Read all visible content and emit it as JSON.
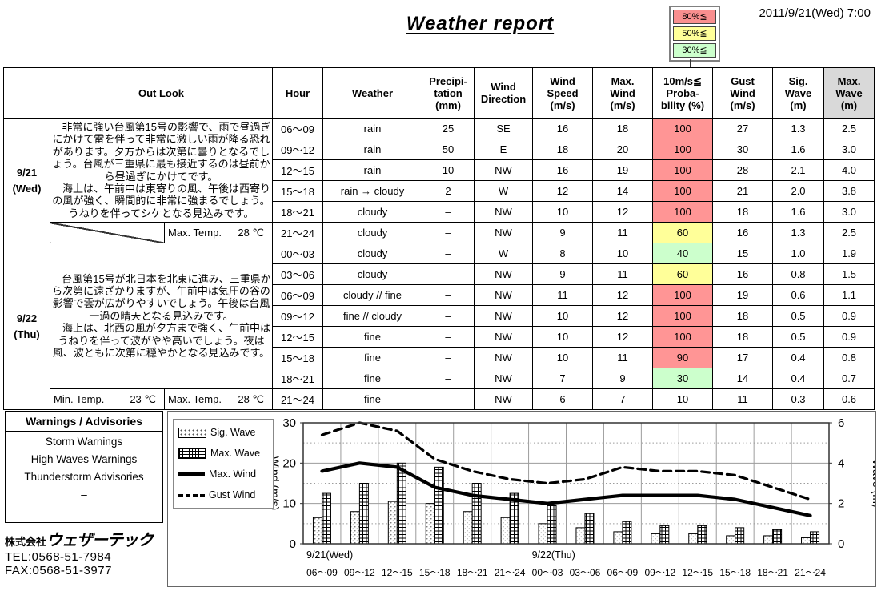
{
  "header": {
    "title": "Weather report",
    "datetime": "2011/9/21(Wed) 7:00",
    "prob_legend": [
      {
        "label": "80%≦",
        "color": "#f98f8f"
      },
      {
        "label": "50%≦",
        "color": "#ffff99"
      },
      {
        "label": "30%≦",
        "color": "#ccffcc"
      }
    ]
  },
  "colors": {
    "prob_high": "#ff9595",
    "prob_mid": "#ffff99",
    "prob_low": "#ccffcc",
    "header_gray": "#d9d9d9"
  },
  "table": {
    "columns": {
      "out_look": "Out Look",
      "hour": "Hour",
      "weather": "Weather",
      "precipitation": "Precipi-\ntation\n(mm)",
      "wind_direction": "Wind\nDirection",
      "wind_speed": "Wind\nSpeed\n(m/s)",
      "max_wind": "Max.\nWind\n(m/s)",
      "probability": "10m/s≦\nProba-\nbility (%)",
      "gust_wind": "Gust\nWind\n(m/s)",
      "sig_wave": "Sig.\nWave\n(m)",
      "max_wave": "Max.\nWave\n(m)"
    },
    "days": [
      {
        "date": "9/21",
        "dow": "(Wed)",
        "outlook": "　非常に強い台風第15号の影響で、雨で昼過ぎにかけて雷を伴って非常に激しい雨が降る恐れがあります。夕方からは次第に曇りとなるでしょう。台風が三重県に最も接近するのは昼前から昼過ぎにかけてです。\n　海上は、午前中は東寄りの風、午後は西寄りの風が強く、瞬間的に非常に強まるでしょう。うねりを伴ってシケとなる見込みです。",
        "temp_row": {
          "right": {
            "label": "Max. Temp.",
            "value": "28 ℃"
          }
        },
        "rows": [
          {
            "hour": "06〜09",
            "weather": "rain",
            "precip": "25",
            "dir": "SE",
            "speed": "16",
            "max_wind": "18",
            "prob": "100",
            "prob_color": "#ff9595",
            "gust": "27",
            "sig_wave": "1.3",
            "max_wave": "2.5"
          },
          {
            "hour": "09〜12",
            "weather": "rain",
            "precip": "50",
            "dir": "E",
            "speed": "18",
            "max_wind": "20",
            "prob": "100",
            "prob_color": "#ff9595",
            "gust": "30",
            "sig_wave": "1.6",
            "max_wave": "3.0"
          },
          {
            "hour": "12〜15",
            "weather": "rain",
            "precip": "10",
            "dir": "NW",
            "speed": "16",
            "max_wind": "19",
            "prob": "100",
            "prob_color": "#ff9595",
            "gust": "28",
            "sig_wave": "2.1",
            "max_wave": "4.0"
          },
          {
            "hour": "15〜18",
            "weather": "rain → cloudy",
            "precip": "2",
            "dir": "W",
            "speed": "12",
            "max_wind": "14",
            "prob": "100",
            "prob_color": "#ff9595",
            "gust": "21",
            "sig_wave": "2.0",
            "max_wave": "3.8"
          },
          {
            "hour": "18〜21",
            "weather": "cloudy",
            "precip": "–",
            "dir": "NW",
            "speed": "10",
            "max_wind": "12",
            "prob": "100",
            "prob_color": "#ff9595",
            "gust": "18",
            "sig_wave": "1.6",
            "max_wave": "3.0"
          },
          {
            "hour": "21〜24",
            "weather": "cloudy",
            "precip": "–",
            "dir": "NW",
            "speed": "9",
            "max_wind": "11",
            "prob": "60",
            "prob_color": "#ffff99",
            "gust": "16",
            "sig_wave": "1.3",
            "max_wave": "2.5"
          }
        ]
      },
      {
        "date": "9/22",
        "dow": "(Thu)",
        "outlook": "　台風第15号が北日本を北東に進み、三重県から次第に遠ざかりますが、午前中は気圧の谷の影響で雲が広がりやすいでしょう。午後は台風一過の晴天となる見込みです。\n　海上は、北西の風が夕方まで強く、午前中はうねりを伴って波がやや高いでしょう。夜は風、波ともに次第に穏やかとなる見込みです。",
        "temp_row": {
          "left": {
            "label": "Min. Temp.",
            "value": "23 ℃"
          },
          "right": {
            "label": "Max. Temp.",
            "value": "28 ℃"
          }
        },
        "rows": [
          {
            "hour": "00〜03",
            "weather": "cloudy",
            "precip": "–",
            "dir": "W",
            "speed": "8",
            "max_wind": "10",
            "prob": "40",
            "prob_color": "#ccffcc",
            "gust": "15",
            "sig_wave": "1.0",
            "max_wave": "1.9"
          },
          {
            "hour": "03〜06",
            "weather": "cloudy",
            "precip": "–",
            "dir": "NW",
            "speed": "9",
            "max_wind": "11",
            "prob": "60",
            "prob_color": "#ffff99",
            "gust": "16",
            "sig_wave": "0.8",
            "max_wave": "1.5"
          },
          {
            "hour": "06〜09",
            "weather": "cloudy // fine",
            "precip": "–",
            "dir": "NW",
            "speed": "11",
            "max_wind": "12",
            "prob": "100",
            "prob_color": "#ff9595",
            "gust": "19",
            "sig_wave": "0.6",
            "max_wave": "1.1"
          },
          {
            "hour": "09〜12",
            "weather": "fine // cloudy",
            "precip": "–",
            "dir": "NW",
            "speed": "10",
            "max_wind": "12",
            "prob": "100",
            "prob_color": "#ff9595",
            "gust": "18",
            "sig_wave": "0.5",
            "max_wave": "0.9"
          },
          {
            "hour": "12〜15",
            "weather": "fine",
            "precip": "–",
            "dir": "NW",
            "speed": "10",
            "max_wind": "12",
            "prob": "100",
            "prob_color": "#ff9595",
            "gust": "18",
            "sig_wave": "0.5",
            "max_wave": "0.9"
          },
          {
            "hour": "15〜18",
            "weather": "fine",
            "precip": "–",
            "dir": "NW",
            "speed": "10",
            "max_wind": "11",
            "prob": "90",
            "prob_color": "#ff9595",
            "gust": "17",
            "sig_wave": "0.4",
            "max_wave": "0.8"
          },
          {
            "hour": "18〜21",
            "weather": "fine",
            "precip": "–",
            "dir": "NW",
            "speed": "7",
            "max_wind": "9",
            "prob": "30",
            "prob_color": "#ccffcc",
            "gust": "14",
            "sig_wave": "0.4",
            "max_wave": "0.7"
          },
          {
            "hour": "21〜24",
            "weather": "fine",
            "precip": "–",
            "dir": "NW",
            "speed": "6",
            "max_wind": "7",
            "prob": "10",
            "prob_color": "#ffffff",
            "gust": "11",
            "sig_wave": "0.3",
            "max_wave": "0.6"
          }
        ]
      }
    ]
  },
  "warnings": {
    "title": "Warnings / Advisories",
    "items": [
      "Storm Warnings",
      "High Waves Warnings",
      "Thunderstorm Advisories",
      "–",
      "–"
    ],
    "company_prefix": "株式会社",
    "company_name": "ウェザーテック",
    "tel": "TEL:0568-51-7984",
    "fax": "FAX:0568-51-3977"
  },
  "chart_data": {
    "type": "bar",
    "subtype": "bar-line-combo",
    "categories": [
      "06〜09",
      "09〜12",
      "12〜15",
      "15〜18",
      "18〜21",
      "21〜24",
      "00〜03",
      "03〜06",
      "06〜09",
      "09〜12",
      "12〜15",
      "15〜18",
      "18〜21",
      "21〜24"
    ],
    "day_markers": [
      {
        "label": "9/21(Wed)",
        "index": 0
      },
      {
        "label": "9/22(Thu)",
        "index": 6
      }
    ],
    "series": [
      {
        "name": "Sig. Wave",
        "type": "bar",
        "axis": "right",
        "values": [
          1.3,
          1.6,
          2.1,
          2.0,
          1.6,
          1.3,
          1.0,
          0.8,
          0.6,
          0.5,
          0.5,
          0.4,
          0.4,
          0.3
        ]
      },
      {
        "name": "Max. Wave",
        "type": "bar",
        "axis": "right",
        "values": [
          2.5,
          3.0,
          4.0,
          3.8,
          3.0,
          2.5,
          1.9,
          1.5,
          1.1,
          0.9,
          0.9,
          0.8,
          0.7,
          0.6
        ]
      },
      {
        "name": "Max. Wind",
        "type": "line",
        "axis": "left",
        "values": [
          18,
          20,
          19,
          14,
          12,
          11,
          10,
          11,
          12,
          12,
          12,
          11,
          9,
          7
        ]
      },
      {
        "name": "Gust Wind",
        "type": "line-dashed",
        "axis": "left",
        "values": [
          27,
          30,
          28,
          21,
          18,
          16,
          15,
          16,
          19,
          18,
          18,
          17,
          14,
          11
        ]
      }
    ],
    "left_axis": {
      "label": "Wind (m/s)",
      "min": 0,
      "max": 30,
      "ticks": [
        0,
        10,
        20,
        30
      ]
    },
    "right_axis": {
      "label": "Wave (m)",
      "min": 0,
      "max": 6,
      "ticks": [
        0,
        2,
        4,
        6
      ]
    },
    "grid": true,
    "legend_position": "left"
  }
}
